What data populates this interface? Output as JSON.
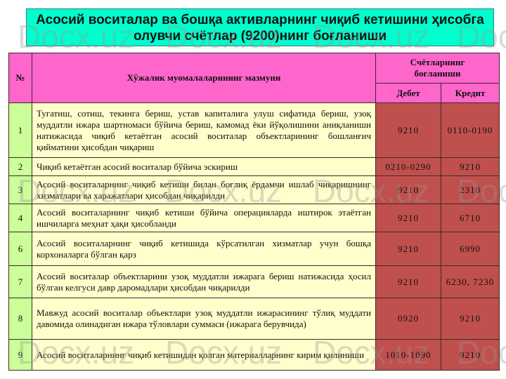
{
  "title": "Асосий воситалар ва бошқа активларнинг чиқиб кетишини ҳисобга олувчи счётлар (9200)нинг боғланиши",
  "watermark": "Docx.uz",
  "table": {
    "headers": {
      "num": "№",
      "content": "Хўжалик муомалаларининг мазмуни",
      "accounts": "Счётларнинг боғланиши",
      "debit": "Дебет",
      "credit": "Кредит"
    },
    "rows": [
      {
        "num": "1",
        "text": "Тугатиш, сотиш, текинга бериш, устав капиталига улуш сифатида бериш, узоқ муддатли ижара шартномаси бўйича бериш, камомад ёки йўқолишини аниқланиши натижасида чиқиб кетаётган асосий воситалар объектларининг бошланғич қийматини ҳисобдан чиқариш",
        "debit": "9210",
        "credit": "0110-0190"
      },
      {
        "num": "2",
        "text": "Чиқиб кетаётган асосий воситалар бўйича эскириш",
        "debit": "0210-0290",
        "credit": "9210"
      },
      {
        "num": "3",
        "text": "Асосий воситаларнинг чиқиб кетиши билан боғлиқ ёрдамчи ишлаб чиқаришнинг хизматлари ва харажатлари ҳисобдан чиқарилди",
        "debit": "9210",
        "credit": "2310"
      },
      {
        "num": "4",
        "text": "Асосий воситаларнинг чиқиб кетиши бўйича операцияларда иштирок этаётган ишчиларга меҳнат ҳақи ҳисобланди",
        "debit": "9210",
        "credit": "6710"
      },
      {
        "num": "6",
        "text": "Асосий воситаларнинг чиқиб кетишида кўрсатилган хизматлар учун бошқа корхоналарга бўлган қарз",
        "debit": "9210",
        "credit": "6990"
      },
      {
        "num": "7",
        "text": "Асосий воситалар объектларини узоқ муддатли ижарага бериш натижасида ҳосил бўлган келгуси давр даромадлари ҳисобдан чиқарилди",
        "debit": "9210",
        "credit": "6230, 7230"
      },
      {
        "num": "8",
        "text": "Мавжуд асосий воситалар объектлари узоқ муддатли ижарасининг тўлиқ муддати давомида олинадиган ижара тўловлари суммаси (ижарага берувчида)",
        "debit": "0920",
        "credit": "9210"
      },
      {
        "num": "9",
        "text": "Асосий воситаларнинг чиқиб кетишидан қолган материалларнинг кирим қилиниши",
        "debit": "1010-1090",
        "credit": "9210"
      }
    ]
  }
}
